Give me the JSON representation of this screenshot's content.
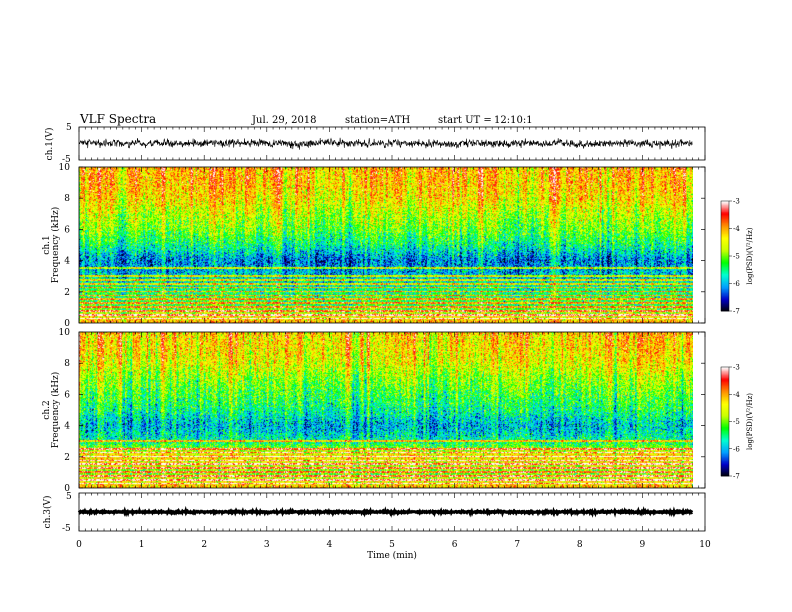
{
  "header": {
    "title": "VLF Spectra",
    "date": "Jul. 29, 2018",
    "station": "station=ATH",
    "start": "start UT =",
    "start_time": "12:10:1"
  },
  "panels": {
    "ch1_wave": {
      "ylabel": "ch.1(V)",
      "yticks": [
        "5",
        "-5"
      ]
    },
    "ch1_spec": {
      "ylabel_line1": "ch.1",
      "ylabel_line2": "Frequency (kHz)",
      "yticks": [
        "0",
        "2",
        "4",
        "6",
        "8",
        "10"
      ]
    },
    "ch2_spec": {
      "ylabel_line1": "ch.2",
      "ylabel_line2": "Frequency (kHz)",
      "yticks": [
        "0",
        "2",
        "4",
        "6",
        "8",
        "10"
      ]
    },
    "ch3_wave": {
      "ylabel": "ch.3(V)",
      "yticks": [
        "5",
        "-5"
      ]
    }
  },
  "colorbar": {
    "label": "log(PSD)(V²/Hz)",
    "ticks": [
      "-3",
      "-4",
      "-5",
      "-6",
      "-7"
    ]
  },
  "chart_data": {
    "type": "heatmap",
    "title": "VLF Spectra",
    "xlabel": "Time (min)",
    "xlim": [
      0,
      10
    ],
    "xticks": [
      "0",
      "1",
      "2",
      "3",
      "4",
      "5",
      "6",
      "7",
      "8",
      "9",
      "10"
    ],
    "data_end_min": 9.8,
    "ylim_kHz": [
      0,
      10
    ],
    "clim_logPSD": [
      -7,
      -3
    ],
    "colormap": [
      "#000000",
      "#0000c8",
      "#00a0ff",
      "#00ffd0",
      "#00ff00",
      "#c8ff00",
      "#ffff00",
      "#ff9000",
      "#ff0000",
      "#ffffff"
    ],
    "channels": [
      {
        "name": "ch.1",
        "freq_kHz": [
          0,
          1,
          2,
          3,
          4,
          5,
          6,
          7,
          8,
          9,
          10
        ],
        "mean_logPSD": [
          -4.0,
          -5.2,
          -5.4,
          -5.9,
          -6.2,
          -5.5,
          -5.0,
          -4.7,
          -4.3,
          -4.1,
          -4.0
        ],
        "hum_lines_kHz": [
          0.25,
          0.5,
          0.75,
          1.0,
          1.25,
          1.5,
          1.75,
          2.0,
          2.25,
          2.5,
          2.75,
          3.0,
          3.5
        ]
      },
      {
        "name": "ch.2",
        "freq_kHz": [
          0,
          1,
          2,
          3,
          4,
          5,
          6,
          7,
          8,
          9,
          10
        ],
        "mean_logPSD": [
          -4.1,
          -5.0,
          -4.2,
          -5.6,
          -6.0,
          -5.5,
          -5.2,
          -4.9,
          -4.5,
          -4.3,
          -4.2
        ],
        "hum_lines_kHz": [
          0.25,
          0.5,
          0.75,
          1.0,
          1.25,
          1.5,
          1.75,
          2.0,
          2.25,
          2.5,
          3.0
        ]
      }
    ],
    "waveforms": [
      {
        "name": "ch.1(V)",
        "ylim": [
          -5,
          5
        ],
        "mean": 0,
        "amplitude": 1.8
      },
      {
        "name": "ch.3(V)",
        "ylim": [
          -5,
          5
        ],
        "mean": 0,
        "amplitude": 0.2
      }
    ]
  }
}
